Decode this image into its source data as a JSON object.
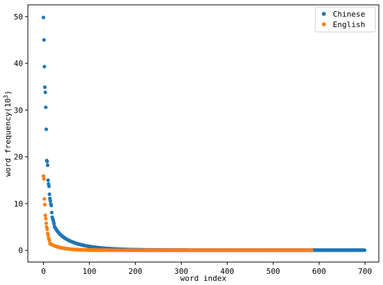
{
  "chart_data": {
    "type": "scatter",
    "title": "",
    "xlabel": "word index",
    "ylabel_prefix": "word frequency(10",
    "ylabel_exponent": "3",
    "ylabel_suffix": ")",
    "xlim": [
      -34,
      730
    ],
    "ylim": [
      -2.5,
      52.5
    ],
    "xticks": [
      0,
      100,
      200,
      300,
      400,
      500,
      600,
      700
    ],
    "yticks": [
      0,
      10,
      20,
      30,
      40,
      50
    ],
    "grid": false,
    "legend_position": "top-right",
    "series": [
      {
        "name": "Chinese",
        "color": "#1f77b4",
        "n_points": 700,
        "head_values": [
          49.8,
          45.0,
          39.3,
          34.9,
          33.8,
          30.6,
          25.9,
          19.2,
          19.0,
          18.2,
          15.0,
          14.2,
          13.7,
          12.0,
          11.1,
          10.6,
          9.9,
          9.6,
          8.1,
          7.1,
          6.8,
          6.5,
          6.1,
          5.7
        ],
        "decay_model": {
          "a": 9.0,
          "b": 0.085,
          "c": 6.4,
          "d": 0.021,
          "floor": 0.05
        }
      },
      {
        "name": "English",
        "color": "#ff7f0e",
        "n_points": 585,
        "head_values": [
          15.9,
          15.3,
          11.0,
          9.8,
          7.5,
          6.8,
          5.8,
          5.0,
          4.5,
          3.6,
          3.3,
          2.6,
          2.4,
          2.1
        ],
        "decay_model": {
          "a": 1.4,
          "b": 0.04,
          "c": 1.1,
          "d": 0.04,
          "floor": 0.03
        }
      }
    ]
  }
}
